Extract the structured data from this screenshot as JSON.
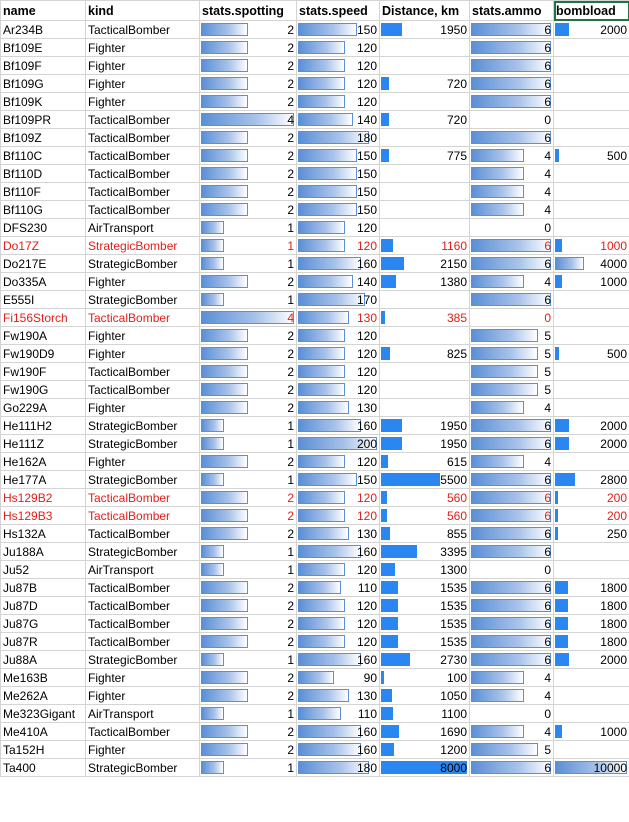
{
  "columns": [
    "name",
    "kind",
    "stats.spotting",
    "stats.speed",
    "Distance, km",
    "stats.ammo",
    "bombload"
  ],
  "selected_column": "bombload",
  "bar_max": {
    "spotting": 4,
    "speed": 200,
    "distance": 8000,
    "ammo": 6,
    "bombload": 10000
  },
  "rows": [
    {
      "name": "Ar234B",
      "kind": "TacticalBomber",
      "spotting": 2,
      "speed": 150,
      "distance": 1950,
      "ammo": 6,
      "bombload": 2000,
      "red": false
    },
    {
      "name": "Bf109E",
      "kind": "Fighter",
      "spotting": 2,
      "speed": 120,
      "distance": null,
      "ammo": 6,
      "bombload": null,
      "red": false
    },
    {
      "name": "Bf109F",
      "kind": "Fighter",
      "spotting": 2,
      "speed": 120,
      "distance": null,
      "ammo": 6,
      "bombload": null,
      "red": false
    },
    {
      "name": "Bf109G",
      "kind": "Fighter",
      "spotting": 2,
      "speed": 120,
      "distance": 720,
      "ammo": 6,
      "bombload": null,
      "red": false
    },
    {
      "name": "Bf109K",
      "kind": "Fighter",
      "spotting": 2,
      "speed": 120,
      "distance": null,
      "ammo": 6,
      "bombload": null,
      "red": false
    },
    {
      "name": "Bf109PR",
      "kind": "TacticalBomber",
      "spotting": 4,
      "speed": 140,
      "distance": 720,
      "ammo": 0,
      "bombload": null,
      "red": false
    },
    {
      "name": "Bf109Z",
      "kind": "TacticalBomber",
      "spotting": 2,
      "speed": 180,
      "distance": null,
      "ammo": 6,
      "bombload": null,
      "red": false
    },
    {
      "name": "Bf110C",
      "kind": "TacticalBomber",
      "spotting": 2,
      "speed": 150,
      "distance": 775,
      "ammo": 4,
      "bombload": 500,
      "red": false
    },
    {
      "name": "Bf110D",
      "kind": "TacticalBomber",
      "spotting": 2,
      "speed": 150,
      "distance": null,
      "ammo": 4,
      "bombload": null,
      "red": false
    },
    {
      "name": "Bf110F",
      "kind": "TacticalBomber",
      "spotting": 2,
      "speed": 150,
      "distance": null,
      "ammo": 4,
      "bombload": null,
      "red": false
    },
    {
      "name": "Bf110G",
      "kind": "TacticalBomber",
      "spotting": 2,
      "speed": 150,
      "distance": null,
      "ammo": 4,
      "bombload": null,
      "red": false
    },
    {
      "name": "DFS230",
      "kind": "AirTransport",
      "spotting": 1,
      "speed": 120,
      "distance": null,
      "ammo": 0,
      "bombload": null,
      "red": false
    },
    {
      "name": "Do17Z",
      "kind": "StrategicBomber",
      "spotting": 1,
      "speed": 120,
      "distance": 1160,
      "ammo": 6,
      "bombload": 1000,
      "red": true
    },
    {
      "name": "Do217E",
      "kind": "StrategicBomber",
      "spotting": 1,
      "speed": 160,
      "distance": 2150,
      "ammo": 6,
      "bombload": 4000,
      "red": false
    },
    {
      "name": "Do335A",
      "kind": "Fighter",
      "spotting": 2,
      "speed": 140,
      "distance": 1380,
      "ammo": 4,
      "bombload": 1000,
      "red": false
    },
    {
      "name": "E555I",
      "kind": "StrategicBomber",
      "spotting": 1,
      "speed": 170,
      "distance": null,
      "ammo": 6,
      "bombload": null,
      "red": false
    },
    {
      "name": "Fi156Storch",
      "kind": "TacticalBomber",
      "spotting": 4,
      "speed": 130,
      "distance": 385,
      "ammo": 0,
      "bombload": null,
      "red": true
    },
    {
      "name": "Fw190A",
      "kind": "Fighter",
      "spotting": 2,
      "speed": 120,
      "distance": null,
      "ammo": 5,
      "bombload": null,
      "red": false
    },
    {
      "name": "Fw190D9",
      "kind": "Fighter",
      "spotting": 2,
      "speed": 120,
      "distance": 825,
      "ammo": 5,
      "bombload": 500,
      "red": false
    },
    {
      "name": "Fw190F",
      "kind": "TacticalBomber",
      "spotting": 2,
      "speed": 120,
      "distance": null,
      "ammo": 5,
      "bombload": null,
      "red": false
    },
    {
      "name": "Fw190G",
      "kind": "TacticalBomber",
      "spotting": 2,
      "speed": 120,
      "distance": null,
      "ammo": 5,
      "bombload": null,
      "red": false
    },
    {
      "name": "Go229A",
      "kind": "Fighter",
      "spotting": 2,
      "speed": 130,
      "distance": null,
      "ammo": 4,
      "bombload": null,
      "red": false
    },
    {
      "name": "He111H2",
      "kind": "StrategicBomber",
      "spotting": 1,
      "speed": 160,
      "distance": 1950,
      "ammo": 6,
      "bombload": 2000,
      "red": false
    },
    {
      "name": "He111Z",
      "kind": "StrategicBomber",
      "spotting": 1,
      "speed": 200,
      "distance": 1950,
      "ammo": 6,
      "bombload": 2000,
      "red": false
    },
    {
      "name": "He162A",
      "kind": "Fighter",
      "spotting": 2,
      "speed": 120,
      "distance": 615,
      "ammo": 4,
      "bombload": null,
      "red": false
    },
    {
      "name": "He177A",
      "kind": "StrategicBomber",
      "spotting": 1,
      "speed": 150,
      "distance": 5500,
      "ammo": 6,
      "bombload": 2800,
      "red": false
    },
    {
      "name": "Hs129B2",
      "kind": "TacticalBomber",
      "spotting": 2,
      "speed": 120,
      "distance": 560,
      "ammo": 6,
      "bombload": 200,
      "red": true
    },
    {
      "name": "Hs129B3",
      "kind": "TacticalBomber",
      "spotting": 2,
      "speed": 120,
      "distance": 560,
      "ammo": 6,
      "bombload": 200,
      "red": true
    },
    {
      "name": "Hs132A",
      "kind": "TacticalBomber",
      "spotting": 2,
      "speed": 130,
      "distance": 855,
      "ammo": 6,
      "bombload": 250,
      "red": false
    },
    {
      "name": "Ju188A",
      "kind": "StrategicBomber",
      "spotting": 1,
      "speed": 160,
      "distance": 3395,
      "ammo": 6,
      "bombload": null,
      "red": false
    },
    {
      "name": "Ju52",
      "kind": "AirTransport",
      "spotting": 1,
      "speed": 120,
      "distance": 1300,
      "ammo": 0,
      "bombload": null,
      "red": false
    },
    {
      "name": "Ju87B",
      "kind": "TacticalBomber",
      "spotting": 2,
      "speed": 110,
      "distance": 1535,
      "ammo": 6,
      "bombload": 1800,
      "red": false
    },
    {
      "name": "Ju87D",
      "kind": "TacticalBomber",
      "spotting": 2,
      "speed": 120,
      "distance": 1535,
      "ammo": 6,
      "bombload": 1800,
      "red": false
    },
    {
      "name": "Ju87G",
      "kind": "TacticalBomber",
      "spotting": 2,
      "speed": 120,
      "distance": 1535,
      "ammo": 6,
      "bombload": 1800,
      "red": false
    },
    {
      "name": "Ju87R",
      "kind": "TacticalBomber",
      "spotting": 2,
      "speed": 120,
      "distance": 1535,
      "ammo": 6,
      "bombload": 1800,
      "red": false
    },
    {
      "name": "Ju88A",
      "kind": "StrategicBomber",
      "spotting": 1,
      "speed": 160,
      "distance": 2730,
      "ammo": 6,
      "bombload": 2000,
      "red": false
    },
    {
      "name": "Me163B",
      "kind": "Fighter",
      "spotting": 2,
      "speed": 90,
      "distance": 100,
      "ammo": 4,
      "bombload": null,
      "red": false
    },
    {
      "name": "Me262A",
      "kind": "Fighter",
      "spotting": 2,
      "speed": 130,
      "distance": 1050,
      "ammo": 4,
      "bombload": null,
      "red": false
    },
    {
      "name": "Me323Gigant",
      "kind": "AirTransport",
      "spotting": 1,
      "speed": 110,
      "distance": 1100,
      "ammo": 0,
      "bombload": null,
      "red": false
    },
    {
      "name": "Me410A",
      "kind": "TacticalBomber",
      "spotting": 2,
      "speed": 160,
      "distance": 1690,
      "ammo": 4,
      "bombload": 1000,
      "red": false
    },
    {
      "name": "Ta152H",
      "kind": "Fighter",
      "spotting": 2,
      "speed": 160,
      "distance": 1200,
      "ammo": 5,
      "bombload": null,
      "red": false
    },
    {
      "name": "Ta400",
      "kind": "StrategicBomber",
      "spotting": 1,
      "speed": 180,
      "distance": 8000,
      "ammo": 6,
      "bombload": 10000,
      "red": false
    }
  ]
}
